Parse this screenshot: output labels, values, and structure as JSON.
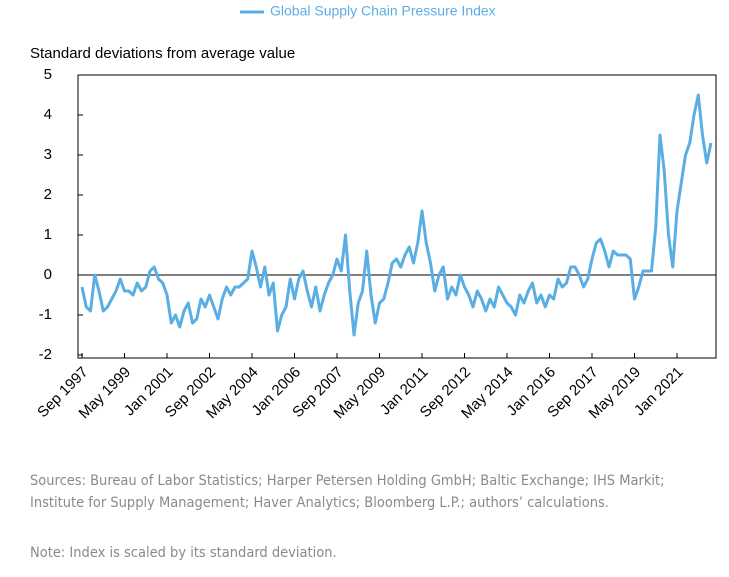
{
  "chart_data": {
    "type": "line",
    "legend_position": "top",
    "y_label": "Standard deviations from average value",
    "categories": [
      "Sep 1997",
      null,
      null,
      null,
      null,
      null,
      null,
      null,
      null,
      null,
      "May 1999",
      null,
      null,
      null,
      null,
      null,
      null,
      null,
      null,
      null,
      "Jan 2001",
      null,
      null,
      null,
      null,
      null,
      null,
      null,
      null,
      null,
      "Sep 2002",
      null,
      null,
      null,
      null,
      null,
      null,
      null,
      null,
      null,
      "May 2004",
      null,
      null,
      null,
      null,
      null,
      null,
      null,
      null,
      null,
      "Jan 2006",
      null,
      null,
      null,
      null,
      null,
      null,
      null,
      null,
      null,
      "Sep 2007",
      null,
      null,
      null,
      null,
      null,
      null,
      null,
      null,
      null,
      "May 2009",
      null,
      null,
      null,
      null,
      null,
      null,
      null,
      null,
      null,
      "Jan 2011",
      null,
      null,
      null,
      null,
      null,
      null,
      null,
      null,
      null,
      "Sep 2012",
      null,
      null,
      null,
      null,
      null,
      null,
      null,
      null,
      null,
      "May 2014",
      null,
      null,
      null,
      null,
      null,
      null,
      null,
      null,
      null,
      "Jan 2016",
      null,
      null,
      null,
      null,
      null,
      null,
      null,
      null,
      null,
      "Sep 2017",
      null,
      null,
      null,
      null,
      null,
      null,
      null,
      null,
      null,
      "May 2019",
      null,
      null,
      null,
      null,
      null,
      null,
      null,
      null,
      null,
      "Jan 2021",
      null,
      null,
      null,
      null,
      null,
      null,
      null,
      null
    ],
    "series": [
      {
        "name": "Global Supply Chain Pressure Index",
        "color": "#5aaee3",
        "values": [
          -0.3,
          -0.8,
          -0.9,
          0.0,
          -0.4,
          -0.9,
          -0.8,
          -0.6,
          -0.4,
          -0.1,
          -0.4,
          -0.4,
          -0.5,
          -0.2,
          -0.4,
          -0.3,
          0.1,
          0.2,
          -0.1,
          -0.2,
          -0.5,
          -1.2,
          -1.0,
          -1.3,
          -0.9,
          -0.7,
          -1.2,
          -1.1,
          -0.6,
          -0.8,
          -0.5,
          -0.8,
          -1.1,
          -0.6,
          -0.3,
          -0.5,
          -0.3,
          -0.3,
          -0.2,
          -0.1,
          0.6,
          0.2,
          -0.3,
          0.2,
          -0.5,
          -0.2,
          -1.4,
          -1.0,
          -0.8,
          -0.1,
          -0.6,
          -0.1,
          0.1,
          -0.4,
          -0.8,
          -0.3,
          -0.9,
          -0.5,
          -0.2,
          0.0,
          0.4,
          0.1,
          1.0,
          -0.4,
          -1.5,
          -0.7,
          -0.4,
          0.6,
          -0.5,
          -1.2,
          -0.7,
          -0.6,
          -0.2,
          0.3,
          0.4,
          0.2,
          0.5,
          0.7,
          0.3,
          0.8,
          1.6,
          0.8,
          0.3,
          -0.4,
          0.0,
          0.2,
          -0.6,
          -0.3,
          -0.5,
          0.0,
          -0.3,
          -0.5,
          -0.8,
          -0.4,
          -0.6,
          -0.9,
          -0.6,
          -0.8,
          -0.3,
          -0.5,
          -0.7,
          -0.8,
          -1.0,
          -0.5,
          -0.7,
          -0.4,
          -0.2,
          -0.7,
          -0.5,
          -0.8,
          -0.5,
          -0.6,
          -0.1,
          -0.3,
          -0.2,
          0.2,
          0.2,
          0.0,
          -0.3,
          -0.1,
          0.4,
          0.8,
          0.9,
          0.6,
          0.2,
          0.6,
          0.5,
          0.5,
          0.5,
          0.4,
          -0.6,
          -0.3,
          0.1,
          0.1,
          0.1,
          1.2,
          3.5,
          2.6,
          1.0,
          0.2,
          1.6,
          2.3,
          3.0,
          3.3,
          4.0,
          4.5,
          3.5,
          2.8,
          3.3
        ]
      }
    ],
    "ylim": [
      -2,
      5
    ],
    "yticks": [
      -2,
      -1,
      0,
      1,
      2,
      3,
      4,
      5
    ],
    "sources": "Sources: Bureau of Labor Statistics; Harper Petersen Holding GmbH; Baltic Exchange; IHS Markit; Institute for Supply Management; Haver Analytics; Bloomberg L.P.; authors’ calculations.",
    "note": "Note: Index is scaled by its standard deviation."
  }
}
